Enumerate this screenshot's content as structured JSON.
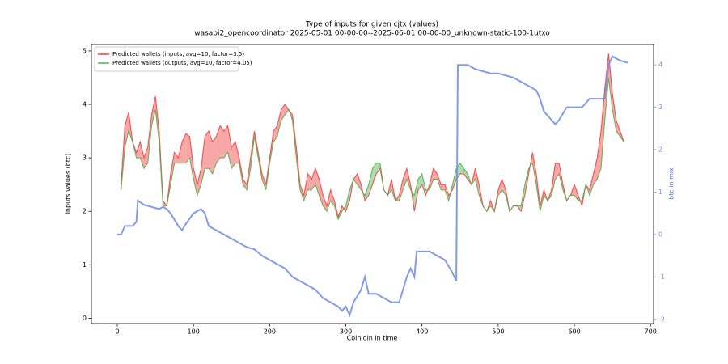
{
  "chart_data": {
    "type": "line",
    "title": "Type of inputs for given cjtx (values)",
    "subtitle": "wasabi2_opencoordinator 2025-05-01 00-00-00--2025-06-01 00-00-00_unknown-static-100-1utxo",
    "xlabel": "Coinjoin in time",
    "ylabel": "Inputs values (btc)",
    "y2label": "btc in mix",
    "xlim": [
      -34,
      704
    ],
    "xticks": [
      0,
      100,
      200,
      300,
      400,
      500,
      600,
      700
    ],
    "ylim": [
      -0.1,
      5.12
    ],
    "yticks": [
      0,
      1,
      2,
      3,
      4,
      5
    ],
    "y2lim": [
      -2.1,
      4.48
    ],
    "y2ticks": [
      -2,
      -1,
      0,
      1,
      2,
      3,
      4
    ],
    "legend": "upper left",
    "fill_between": true,
    "series": [
      {
        "name": "Predicted wallets (inputs, avg=10, factor=3.5)",
        "color": "#f03c3c",
        "x": [
          5,
          10,
          15,
          20,
          25,
          30,
          35,
          40,
          45,
          50,
          55,
          60,
          65,
          70,
          75,
          80,
          85,
          90,
          95,
          100,
          105,
          110,
          115,
          120,
          125,
          130,
          135,
          140,
          145,
          150,
          155,
          160,
          165,
          170,
          175,
          180,
          185,
          190,
          195,
          200,
          205,
          210,
          215,
          220,
          225,
          230,
          235,
          240,
          245,
          250,
          255,
          260,
          265,
          270,
          275,
          280,
          285,
          290,
          295,
          300,
          305,
          310,
          315,
          320,
          325,
          330,
          335,
          340,
          345,
          350,
          355,
          360,
          365,
          370,
          375,
          380,
          385,
          390,
          395,
          400,
          405,
          410,
          415,
          420,
          425,
          430,
          435,
          440,
          445,
          450,
          455,
          460,
          465,
          470,
          475,
          480,
          485,
          490,
          495,
          500,
          505,
          510,
          515,
          520,
          525,
          530,
          535,
          540,
          545,
          550,
          555,
          560,
          565,
          570,
          575,
          580,
          585,
          590,
          595,
          600,
          605,
          610,
          615,
          620,
          625,
          630,
          635,
          640,
          645,
          650,
          655,
          660,
          665
        ],
        "values": [
          2.5,
          3.6,
          3.85,
          3.3,
          3.1,
          3.3,
          3.0,
          3.2,
          3.8,
          4.15,
          3.5,
          2.2,
          2.1,
          2.7,
          3.1,
          3.0,
          3.3,
          3.45,
          3.4,
          2.8,
          2.5,
          2.8,
          3.4,
          3.5,
          3.3,
          3.4,
          3.6,
          3.5,
          3.6,
          3.2,
          3.3,
          3.0,
          2.6,
          2.5,
          3.0,
          3.5,
          3.1,
          2.7,
          2.5,
          3.0,
          3.5,
          3.6,
          3.9,
          4.0,
          3.9,
          3.8,
          3.2,
          2.5,
          2.3,
          2.7,
          2.6,
          2.8,
          2.6,
          2.3,
          2.1,
          2.4,
          2.2,
          1.9,
          2.1,
          2.0,
          2.2,
          2.6,
          2.7,
          2.5,
          2.2,
          2.3,
          2.5,
          2.7,
          2.8,
          2.4,
          2.3,
          2.6,
          2.2,
          2.3,
          2.6,
          2.8,
          2.5,
          2.0,
          2.4,
          2.5,
          2.3,
          2.5,
          2.8,
          2.7,
          2.5,
          2.5,
          2.3,
          2.4,
          2.6,
          2.7,
          2.7,
          2.6,
          2.5,
          2.8,
          2.5,
          2.1,
          2.0,
          2.2,
          2.0,
          2.4,
          2.6,
          2.4,
          2.0,
          2.1,
          2.1,
          2.0,
          2.3,
          2.7,
          3.1,
          2.7,
          2.1,
          2.4,
          2.2,
          2.4,
          2.9,
          2.9,
          2.5,
          2.2,
          2.3,
          2.5,
          2.3,
          2.1,
          2.5,
          2.4,
          2.7,
          3.0,
          3.5,
          4.3,
          4.95,
          4.2,
          3.7,
          3.5,
          3.3
        ]
      },
      {
        "name": "Predicted wallets (outputs, avg=10, factor=4.05)",
        "color": "#4caf4c",
        "x": [
          5,
          10,
          15,
          20,
          25,
          30,
          35,
          40,
          45,
          50,
          55,
          60,
          65,
          70,
          75,
          80,
          85,
          90,
          95,
          100,
          105,
          110,
          115,
          120,
          125,
          130,
          135,
          140,
          145,
          150,
          155,
          160,
          165,
          170,
          175,
          180,
          185,
          190,
          195,
          200,
          205,
          210,
          215,
          220,
          225,
          230,
          235,
          240,
          245,
          250,
          255,
          260,
          265,
          270,
          275,
          280,
          285,
          290,
          295,
          300,
          305,
          310,
          315,
          320,
          325,
          330,
          335,
          340,
          345,
          350,
          355,
          360,
          365,
          370,
          375,
          380,
          385,
          390,
          395,
          400,
          405,
          410,
          415,
          420,
          425,
          430,
          435,
          440,
          445,
          450,
          455,
          460,
          465,
          470,
          475,
          480,
          485,
          490,
          495,
          500,
          505,
          510,
          515,
          520,
          525,
          530,
          535,
          540,
          545,
          550,
          555,
          560,
          565,
          570,
          575,
          580,
          585,
          590,
          595,
          600,
          605,
          610,
          615,
          620,
          625,
          630,
          635,
          640,
          645,
          650,
          655,
          660,
          665
        ],
        "values": [
          2.4,
          3.2,
          3.5,
          3.3,
          3.0,
          3.0,
          2.8,
          2.9,
          3.6,
          3.9,
          3.3,
          2.1,
          2.1,
          2.5,
          2.9,
          2.9,
          2.9,
          2.9,
          3.0,
          2.6,
          2.3,
          2.5,
          2.8,
          2.8,
          2.7,
          2.9,
          3.0,
          3.0,
          3.1,
          2.8,
          2.9,
          2.9,
          2.5,
          2.4,
          2.8,
          3.4,
          3.0,
          2.6,
          2.4,
          2.9,
          3.3,
          3.4,
          3.7,
          3.8,
          3.9,
          3.7,
          3.0,
          2.4,
          2.2,
          2.4,
          2.4,
          2.5,
          2.3,
          2.1,
          2.0,
          2.2,
          2.1,
          1.85,
          2.0,
          2.1,
          2.4,
          2.6,
          2.5,
          2.4,
          2.3,
          2.5,
          2.8,
          2.9,
          2.9,
          2.4,
          2.3,
          2.4,
          2.2,
          2.2,
          2.4,
          2.6,
          2.4,
          2.3,
          2.6,
          2.7,
          2.4,
          2.4,
          2.6,
          2.6,
          2.4,
          2.4,
          2.2,
          2.5,
          2.8,
          2.9,
          2.8,
          2.7,
          2.5,
          2.6,
          2.3,
          2.1,
          2.0,
          2.1,
          2.0,
          2.3,
          2.4,
          2.3,
          2.0,
          2.1,
          2.1,
          2.1,
          2.5,
          2.8,
          2.9,
          2.5,
          2.0,
          2.3,
          2.2,
          2.3,
          2.6,
          2.7,
          2.4,
          2.2,
          2.3,
          2.3,
          2.2,
          2.2,
          2.5,
          2.3,
          2.5,
          2.6,
          2.8,
          3.7,
          4.5,
          3.9,
          3.5,
          3.4,
          3.3
        ]
      },
      {
        "color": "#7690e6",
        "axis": "y2",
        "x": [
          0,
          5,
          10,
          15,
          20,
          25,
          27,
          35,
          45,
          55,
          60,
          65,
          70,
          80,
          85,
          90,
          100,
          110,
          115,
          120,
          130,
          140,
          150,
          160,
          170,
          180,
          190,
          200,
          210,
          220,
          230,
          240,
          250,
          260,
          270,
          280,
          290,
          295,
          300,
          305,
          310,
          320,
          325,
          330,
          340,
          350,
          360,
          365,
          370,
          375,
          380,
          385,
          390,
          393,
          400,
          410,
          420,
          430,
          440,
          445,
          447,
          460,
          470,
          480,
          490,
          500,
          510,
          520,
          530,
          540,
          550,
          555,
          560,
          570,
          575,
          580,
          590,
          600,
          610,
          620,
          630,
          640,
          645,
          650,
          660,
          670
        ],
        "values": [
          0,
          0,
          0.2,
          0.2,
          0.2,
          0.3,
          0.8,
          0.7,
          0.65,
          0.6,
          0.65,
          0.6,
          0.5,
          0.2,
          0.1,
          0.25,
          0.5,
          0.6,
          0.5,
          0.2,
          0.1,
          0.0,
          -0.1,
          -0.2,
          -0.3,
          -0.35,
          -0.5,
          -0.6,
          -0.7,
          -0.8,
          -1.0,
          -1.1,
          -1.2,
          -1.3,
          -1.5,
          -1.6,
          -1.7,
          -1.8,
          -1.7,
          -1.9,
          -1.6,
          -1.3,
          -1.0,
          -1.4,
          -1.4,
          -1.5,
          -1.6,
          -1.6,
          -1.6,
          -1.3,
          -1.0,
          -0.8,
          -1.0,
          -0.4,
          -0.4,
          -0.4,
          -0.5,
          -0.6,
          -0.9,
          -1.1,
          4.0,
          4.0,
          3.9,
          3.85,
          3.8,
          3.8,
          3.75,
          3.7,
          3.6,
          3.5,
          3.4,
          3.2,
          2.9,
          2.7,
          2.6,
          2.7,
          3.0,
          3.0,
          3.0,
          3.2,
          3.2,
          3.2,
          4.0,
          4.2,
          4.1,
          4.05
        ]
      }
    ]
  }
}
